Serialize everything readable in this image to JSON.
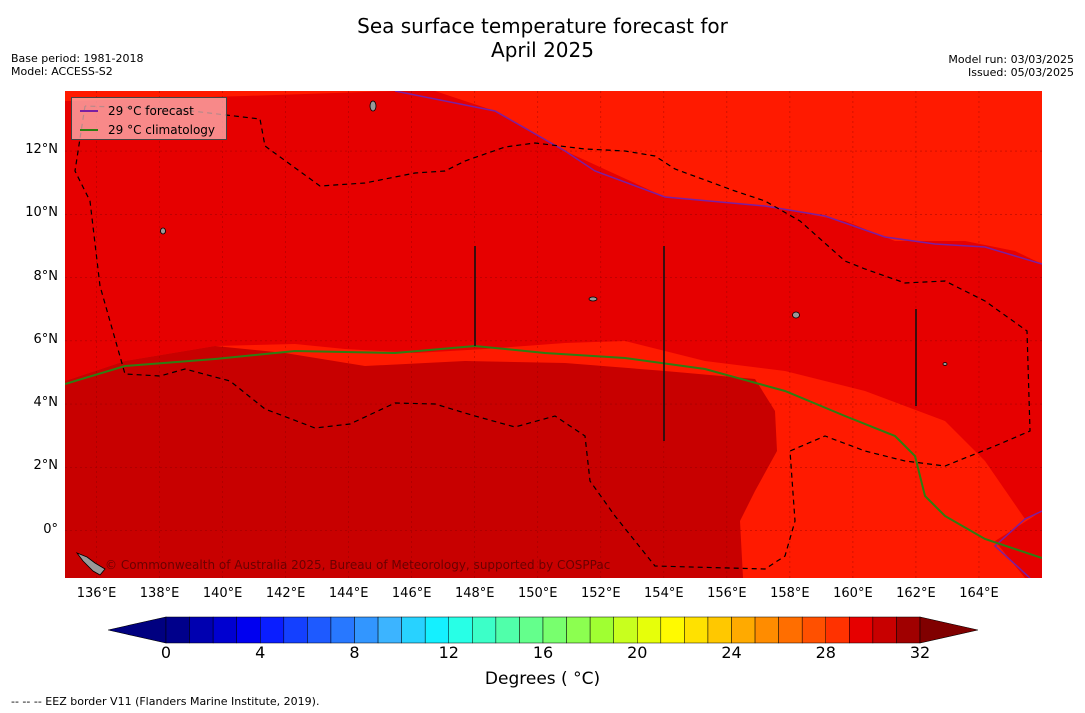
{
  "title_line1": "Sea surface temperature forecast for",
  "title_line2": "April 2025",
  "meta_left": {
    "base_period": "Base period: 1981-2018",
    "model": "Model: ACCESS-S2"
  },
  "meta_right": {
    "model_run": "Model run: 03/03/2025",
    "issued": "Issued: 05/03/2025"
  },
  "legend": [
    {
      "label": "29 °C  forecast",
      "color": "#7b1fa2"
    },
    {
      "label": "29 °C  climatology",
      "color": "#2e7d12"
    }
  ],
  "copyright": "© Commonwealth of Australia 2025, Bureau of Meteorology, supported by COSPPac",
  "lat_labels": [
    {
      "text": "12°N",
      "lat": 12
    },
    {
      "text": "10°N",
      "lat": 10
    },
    {
      "text": "8°N",
      "lat": 8
    },
    {
      "text": "6°N",
      "lat": 6
    },
    {
      "text": "4°N",
      "lat": 4
    },
    {
      "text": "2°N",
      "lat": 2
    },
    {
      "text": "0°",
      "lat": 0
    }
  ],
  "lon_labels": [
    {
      "text": "136°E",
      "lon": 136
    },
    {
      "text": "138°E",
      "lon": 138
    },
    {
      "text": "140°E",
      "lon": 140
    },
    {
      "text": "142°E",
      "lon": 142
    },
    {
      "text": "144°E",
      "lon": 144
    },
    {
      "text": "146°E",
      "lon": 146
    },
    {
      "text": "148°E",
      "lon": 148
    },
    {
      "text": "150°E",
      "lon": 150
    },
    {
      "text": "152°E",
      "lon": 152
    },
    {
      "text": "154°E",
      "lon": 154
    },
    {
      "text": "156°E",
      "lon": 156
    },
    {
      "text": "158°E",
      "lon": 158
    },
    {
      "text": "160°E",
      "lon": 160
    },
    {
      "text": "162°E",
      "lon": 162
    },
    {
      "text": "164°E",
      "lon": 164
    }
  ],
  "extent": {
    "lon_min": 135.0,
    "lon_max": 166.0,
    "lat_min": -1.5,
    "lat_max": 13.9
  },
  "colorbar": {
    "ticks": [
      "0",
      "4",
      "8",
      "12",
      "16",
      "20",
      "24",
      "28",
      "32"
    ],
    "title": "Degrees ( °C)",
    "min": 0,
    "max": 32,
    "step": 1,
    "colors": [
      "#00008b",
      "#0000b0",
      "#0000d0",
      "#0000f0",
      "#0a1eff",
      "#1440ff",
      "#1e5aff",
      "#2878ff",
      "#3296ff",
      "#3cb4ff",
      "#28d2ff",
      "#14f0ff",
      "#28ffe6",
      "#3cffc8",
      "#50ffaa",
      "#64ff8c",
      "#78ff6e",
      "#8cff50",
      "#a0ff32",
      "#c8ff1e",
      "#e6ff0a",
      "#fffa00",
      "#ffe100",
      "#ffc800",
      "#ffaa00",
      "#ff8c00",
      "#ff6e00",
      "#ff5000",
      "#ff3200",
      "#e60000",
      "#c80000",
      "#a00000"
    ],
    "under_color": "#000080",
    "over_color": "#800000"
  },
  "footer": "--  --  -- EEZ border V11 (Flanders Marine Institute, 2019)."
}
